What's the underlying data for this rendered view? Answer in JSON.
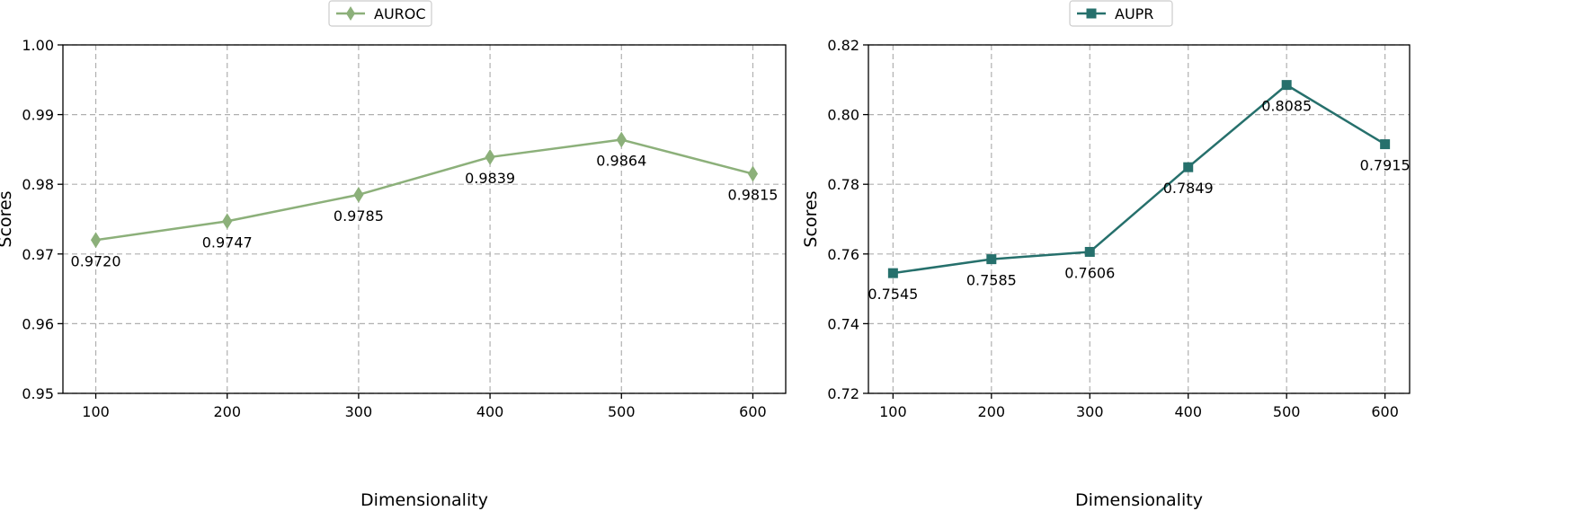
{
  "chart_data": [
    {
      "type": "line",
      "title": "",
      "xlabel": "Dimensionality",
      "ylabel": "Scores",
      "x": [
        100,
        200,
        300,
        400,
        500,
        600
      ],
      "xlim": [
        75,
        625
      ],
      "ylim": [
        0.95,
        1.0
      ],
      "xticks": [
        100,
        200,
        300,
        400,
        500,
        600
      ],
      "yticks": [
        0.95,
        0.96,
        0.97,
        0.98,
        0.99,
        1.0
      ],
      "ytick_decimals": 2,
      "grid": true,
      "legend_position": "top-center",
      "series": [
        {
          "name": "AUROC",
          "values": [
            0.972,
            0.9747,
            0.9785,
            0.9839,
            0.9864,
            0.9815
          ],
          "labels": [
            "0.9720",
            "0.9747",
            "0.9785",
            "0.9839",
            "0.9864",
            "0.9815"
          ],
          "color": "#8cb07a",
          "marker": "diamond"
        }
      ]
    },
    {
      "type": "line",
      "title": "",
      "xlabel": "Dimensionality",
      "ylabel": "Scores",
      "x": [
        100,
        200,
        300,
        400,
        500,
        600
      ],
      "xlim": [
        75,
        625
      ],
      "ylim": [
        0.72,
        0.82
      ],
      "xticks": [
        100,
        200,
        300,
        400,
        500,
        600
      ],
      "yticks": [
        0.72,
        0.74,
        0.76,
        0.78,
        0.8,
        0.82
      ],
      "ytick_decimals": 2,
      "grid": true,
      "legend_position": "top-center",
      "series": [
        {
          "name": "AUPR",
          "values": [
            0.7545,
            0.7585,
            0.7606,
            0.7849,
            0.8085,
            0.7915
          ],
          "labels": [
            "0.7545",
            "0.7585",
            "0.7606",
            "0.7849",
            "0.8085",
            "0.7915"
          ],
          "color": "#26706c",
          "marker": "square"
        }
      ]
    }
  ]
}
